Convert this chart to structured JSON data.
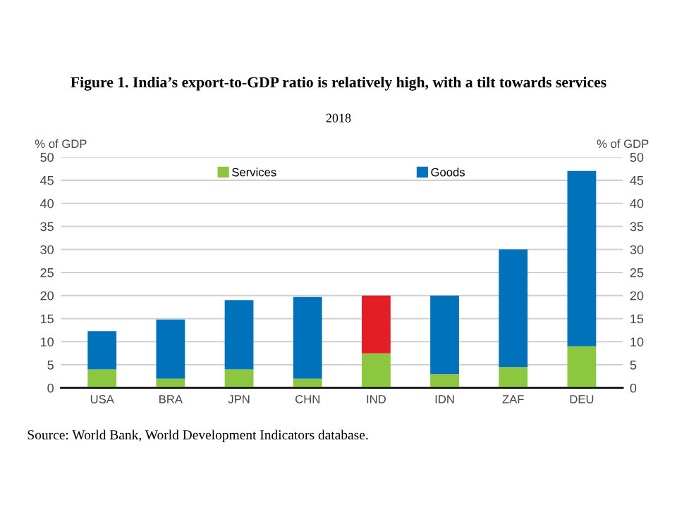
{
  "chart_data": {
    "type": "bar",
    "title": "Figure 1. India’s export-to-GDP ratio is relatively high, with a tilt towards services",
    "subtitle": "2018",
    "ylabel": "% of GDP",
    "y2label": "% of GDP",
    "categories": [
      "USA",
      "BRA",
      "JPN",
      "CHN",
      "IND",
      "IDN",
      "ZAF",
      "DEU"
    ],
    "stacked": true,
    "series": [
      {
        "name": "Services",
        "color": "#8dc63f",
        "values": [
          4,
          2,
          4,
          2,
          7.5,
          3,
          4.5,
          9
        ]
      },
      {
        "name": "Goods",
        "color": "#0072bc",
        "colors": [
          "#0072bc",
          "#0072bc",
          "#0072bc",
          "#0072bc",
          "#e31e24",
          "#0072bc",
          "#0072bc",
          "#0072bc"
        ],
        "values": [
          8.3,
          12.8,
          15,
          17.7,
          12.5,
          17,
          25.5,
          38
        ]
      }
    ],
    "ylim": [
      0,
      50
    ],
    "yticks": [
      0,
      5,
      10,
      15,
      20,
      25,
      30,
      35,
      40,
      45,
      50
    ],
    "y2lim": [
      0,
      50
    ],
    "y2ticks": [
      0,
      5,
      10,
      15,
      20,
      25,
      30,
      35,
      40,
      45,
      50
    ],
    "grid": "y",
    "legend": "top",
    "annotations": [
      "Source: World Bank, World Development Indicators database."
    ]
  }
}
